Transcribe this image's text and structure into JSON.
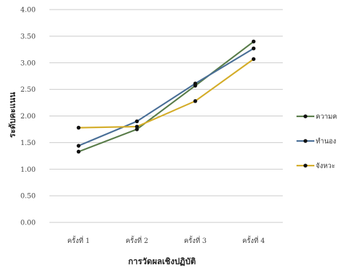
{
  "chart_data": {
    "type": "line",
    "categories": [
      "ครั้งที่ 1",
      "ครั้งที่ 2",
      "ครั้งที่ 3",
      "ครั้งที่ 4"
    ],
    "series": [
      {
        "name": "ความค",
        "color": "#5a7d4a",
        "values": [
          1.33,
          1.75,
          2.57,
          3.4
        ]
      },
      {
        "name": "ทำนอง",
        "color": "#4a6f97",
        "values": [
          1.44,
          1.9,
          2.61,
          3.27
        ]
      },
      {
        "name": "จังหวะ",
        "color": "#d4ad2a",
        "values": [
          1.78,
          1.8,
          2.28,
          3.07
        ]
      }
    ],
    "xlabel": "การวัดผลเชิงปฏิบัติ",
    "ylabel": "ระดับคะแนน",
    "ylim": [
      0,
      4
    ],
    "yticks": [
      "0.00",
      "0.50",
      "1.00",
      "1.50",
      "2.00",
      "2.50",
      "3.00",
      "3.50",
      "4.00"
    ],
    "grid": true,
    "legend_position": "right"
  }
}
